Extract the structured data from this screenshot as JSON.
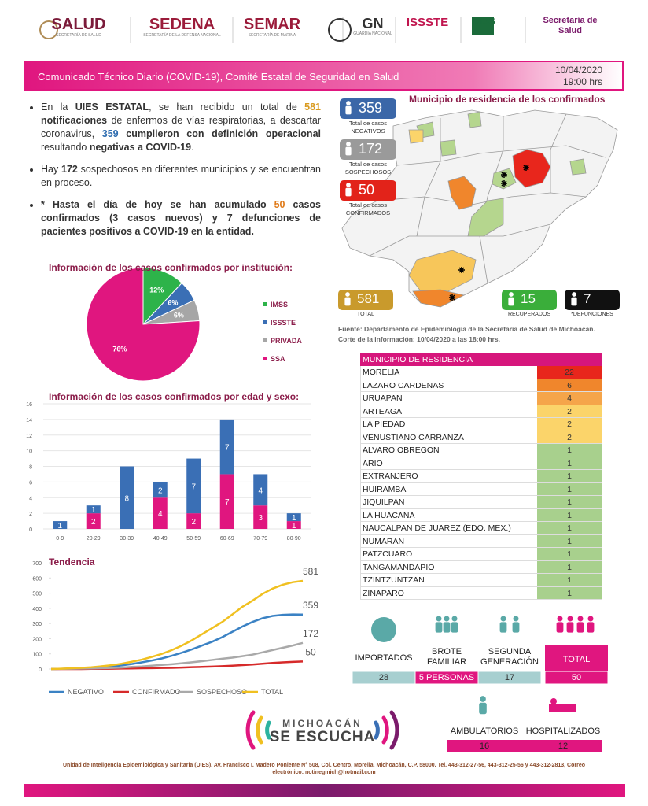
{
  "header": {
    "logos": [
      {
        "name": "SALUD",
        "sub": "SECRETARÍA DE SALUD"
      },
      {
        "name": "SEDENA",
        "sub": "SECRETARÍA DE LA DEFENSA NACIONAL"
      },
      {
        "name": "SEMAR",
        "sub": "SECRETARÍA DE MARINA"
      },
      {
        "name": "GN",
        "sub": "GUARDIA NACIONAL"
      },
      {
        "name": "ISSSTE"
      },
      {
        "name": "IMSS"
      },
      {
        "name": "Secretaría de Salud"
      }
    ]
  },
  "banner": {
    "title": "Comunicado Técnico Diario (COVID-19), Comité Estatal de Seguridad en Salud",
    "date": "10/04/2020",
    "time": "19:00 hrs"
  },
  "bullets": [
    [
      {
        "text": "En la "
      },
      {
        "text": "UIES ESTATAL",
        "bold": true
      },
      {
        "text": ", se han recibido un total de "
      },
      {
        "text": "581",
        "bold": true,
        "color": "#d99a1e"
      },
      {
        "text": " notificaciones",
        "bold": true
      },
      {
        "text": " de enfermos de vías respiratorias, a descartar coronavirus, "
      },
      {
        "text": "359",
        "bold": true,
        "color": "#2f6db0"
      },
      {
        "text": " cumplieron con definición operacional",
        "bold": true
      },
      {
        "text": " resultando "
      },
      {
        "text": "negativas a COVID-19",
        "bold": true
      },
      {
        "text": "."
      }
    ],
    [
      {
        "text": "Hay "
      },
      {
        "text": "172",
        "bold": true
      },
      {
        "text": " sospechosos en diferentes municipios y se encuentran en proceso."
      }
    ],
    [
      {
        "text": "* Hasta el día de hoy se han acumulado ",
        "bold": true
      },
      {
        "text": "50",
        "bold": true,
        "color": "#e07b1a"
      },
      {
        "text": " casos confirmados (3 casos nuevos) y 7 defunciones de pacientes positivos a COVID-19 en la entidad.",
        "bold": true
      }
    ]
  ],
  "cases": [
    {
      "value": 359,
      "label": "Total de casos",
      "sub": "NEGATIVOS",
      "color": "#3b67a8"
    },
    {
      "value": 172,
      "label": "Total de casos",
      "sub": "SOSPECHOSOS",
      "color": "#9a9a9a"
    },
    {
      "value": 50,
      "label": "Total de casos",
      "sub": "CONFIRMADOS",
      "color": "#e2231a"
    }
  ],
  "map": {
    "title": "Municipio de residencia de los confirmados"
  },
  "totals": [
    {
      "value": 581,
      "label": "TOTAL",
      "color": "#c99a2c"
    },
    {
      "value": 15,
      "label": "RECUPERADOS",
      "color": "#3aae3a"
    },
    {
      "value": 7,
      "label": "*DEFUNCIONES",
      "color": "#111111"
    }
  ],
  "source": [
    "Fuente: Departamento de Epidemiología de la Secretaría de Salud de Michoacán.",
    "Corte de la información: 10/04/2020 a las 18:00 hrs."
  ],
  "chart_data": [
    {
      "type": "pie",
      "title": "Información de los casos confirmados por institución:",
      "categories": [
        "IMSS",
        "ISSSTE",
        "PRIVADA",
        "SSA"
      ],
      "values": [
        12,
        6,
        6,
        76
      ],
      "value_labels": [
        "12%",
        "6%",
        "6%",
        "76%"
      ],
      "colors": [
        "#2db34a",
        "#3a6fb5",
        "#a6a6a6",
        "#e0167f"
      ]
    },
    {
      "type": "bar",
      "stacked": true,
      "title": "Información de los casos confirmados por edad y sexo:",
      "categories": [
        "0-9",
        "20-29",
        "30-39",
        "40-49",
        "50-59",
        "60-69",
        "70-79",
        "80-90"
      ],
      "series": [
        {
          "color": "#e0167f",
          "values": [
            0,
            2,
            0,
            4,
            2,
            7,
            3,
            1
          ]
        },
        {
          "color": "#3a6fb5",
          "values": [
            1,
            1,
            8,
            2,
            7,
            7,
            4,
            1
          ]
        }
      ],
      "ylim": [
        0,
        16
      ],
      "yticks": [
        0,
        2,
        4,
        6,
        8,
        10,
        12,
        14,
        16
      ],
      "grid": true
    },
    {
      "type": "line",
      "title": "Tendencia",
      "series": [
        {
          "name": "NEGATIVO",
          "color": "#3b82c4",
          "values": [
            0,
            1,
            3,
            5,
            8,
            12,
            17,
            24,
            33,
            44,
            56,
            70,
            88,
            108,
            130,
            155,
            180,
            210,
            245,
            280,
            310,
            335,
            350,
            357,
            360,
            359
          ]
        },
        {
          "name": "CONFIRMADO",
          "color": "#d62a2a",
          "values": [
            0,
            0,
            0,
            0,
            1,
            1,
            2,
            3,
            4,
            5,
            6,
            7,
            8,
            10,
            12,
            14,
            16,
            19,
            22,
            26,
            30,
            35,
            40,
            44,
            47,
            50
          ]
        },
        {
          "name": "SOSPECHOSO",
          "color": "#a9a9a9",
          "values": [
            0,
            1,
            2,
            3,
            4,
            5,
            7,
            10,
            14,
            17,
            22,
            27,
            32,
            38,
            45,
            52,
            60,
            68,
            75,
            85,
            95,
            110,
            125,
            140,
            155,
            172
          ]
        },
        {
          "name": "TOTAL",
          "color": "#f0c020",
          "values": [
            0,
            2,
            5,
            8,
            12,
            18,
            25,
            35,
            48,
            62,
            80,
            100,
            125,
            155,
            190,
            230,
            270,
            310,
            360,
            410,
            450,
            495,
            530,
            555,
            572,
            581
          ]
        }
      ],
      "ylim": [
        0,
        700
      ],
      "yticks": [
        0,
        100,
        200,
        300,
        400,
        500,
        600,
        700
      ],
      "grid": false
    }
  ],
  "table": {
    "header": "MUNICIPIO DE RESIDENCIA",
    "rows": [
      [
        "MORELIA",
        22
      ],
      [
        "LAZARO CARDENAS",
        6
      ],
      [
        "URUAPAN",
        4
      ],
      [
        "ARTEAGA",
        2
      ],
      [
        "LA PIEDAD",
        2
      ],
      [
        "VENUSTIANO CARRANZA",
        2
      ],
      [
        "ALVARO OBREGON",
        1
      ],
      [
        "ARIO",
        1
      ],
      [
        "EXTRANJERO",
        1
      ],
      [
        "HUIRAMBA",
        1
      ],
      [
        "JIQUILPAN",
        1
      ],
      [
        "LA HUACANA",
        1
      ],
      [
        "NAUCALPAN DE JUAREZ (EDO. MEX.)",
        1
      ],
      [
        "NUMARAN",
        1
      ],
      [
        "PATZCUARO",
        1
      ],
      [
        "TANGAMANDAPIO",
        1
      ],
      [
        "TZINTZUNTZAN",
        1
      ],
      [
        "ZINAPARO",
        1
      ]
    ],
    "colors": [
      "#e8261c",
      "#f0862c",
      "#f5a54a",
      "#fbd46a",
      "#fbd46a",
      "#fbd46a",
      "#a8d08d",
      "#a8d08d",
      "#a8d08d",
      "#a8d08d",
      "#a8d08d",
      "#a8d08d",
      "#a8d08d",
      "#a8d08d",
      "#a8d08d",
      "#a8d08d",
      "#a8d08d",
      "#a8d08d"
    ]
  },
  "transmission": [
    {
      "label": "IMPORTADOS",
      "value": 28
    },
    {
      "label": "BROTE FAMILIAR",
      "value": "5 PERSONAS"
    },
    {
      "label": "SEGUNDA GENERACIÓN",
      "value": 17
    },
    {
      "label": "TOTAL",
      "value": 50
    }
  ],
  "care": [
    {
      "label": "AMBULATORIOS",
      "value": 16
    },
    {
      "label": "HOSPITALIZADOS",
      "value": 12
    }
  ],
  "campaign": {
    "line1": "MICHOACÁN",
    "line2": "SE ESCUCHA"
  },
  "footer": {
    "text": "Unidad de Inteligencia Epidemiológica y Sanitaria (UIES). Av. Francisco I. Madero Poniente N° 508, Col. Centro, Morelia, Michoacán, C.P. 58000. Tel. 443-312-27-56, 443-312-25-56 y 443-312-2813, Correo electrónico: notinegmich@hotmail.com"
  }
}
